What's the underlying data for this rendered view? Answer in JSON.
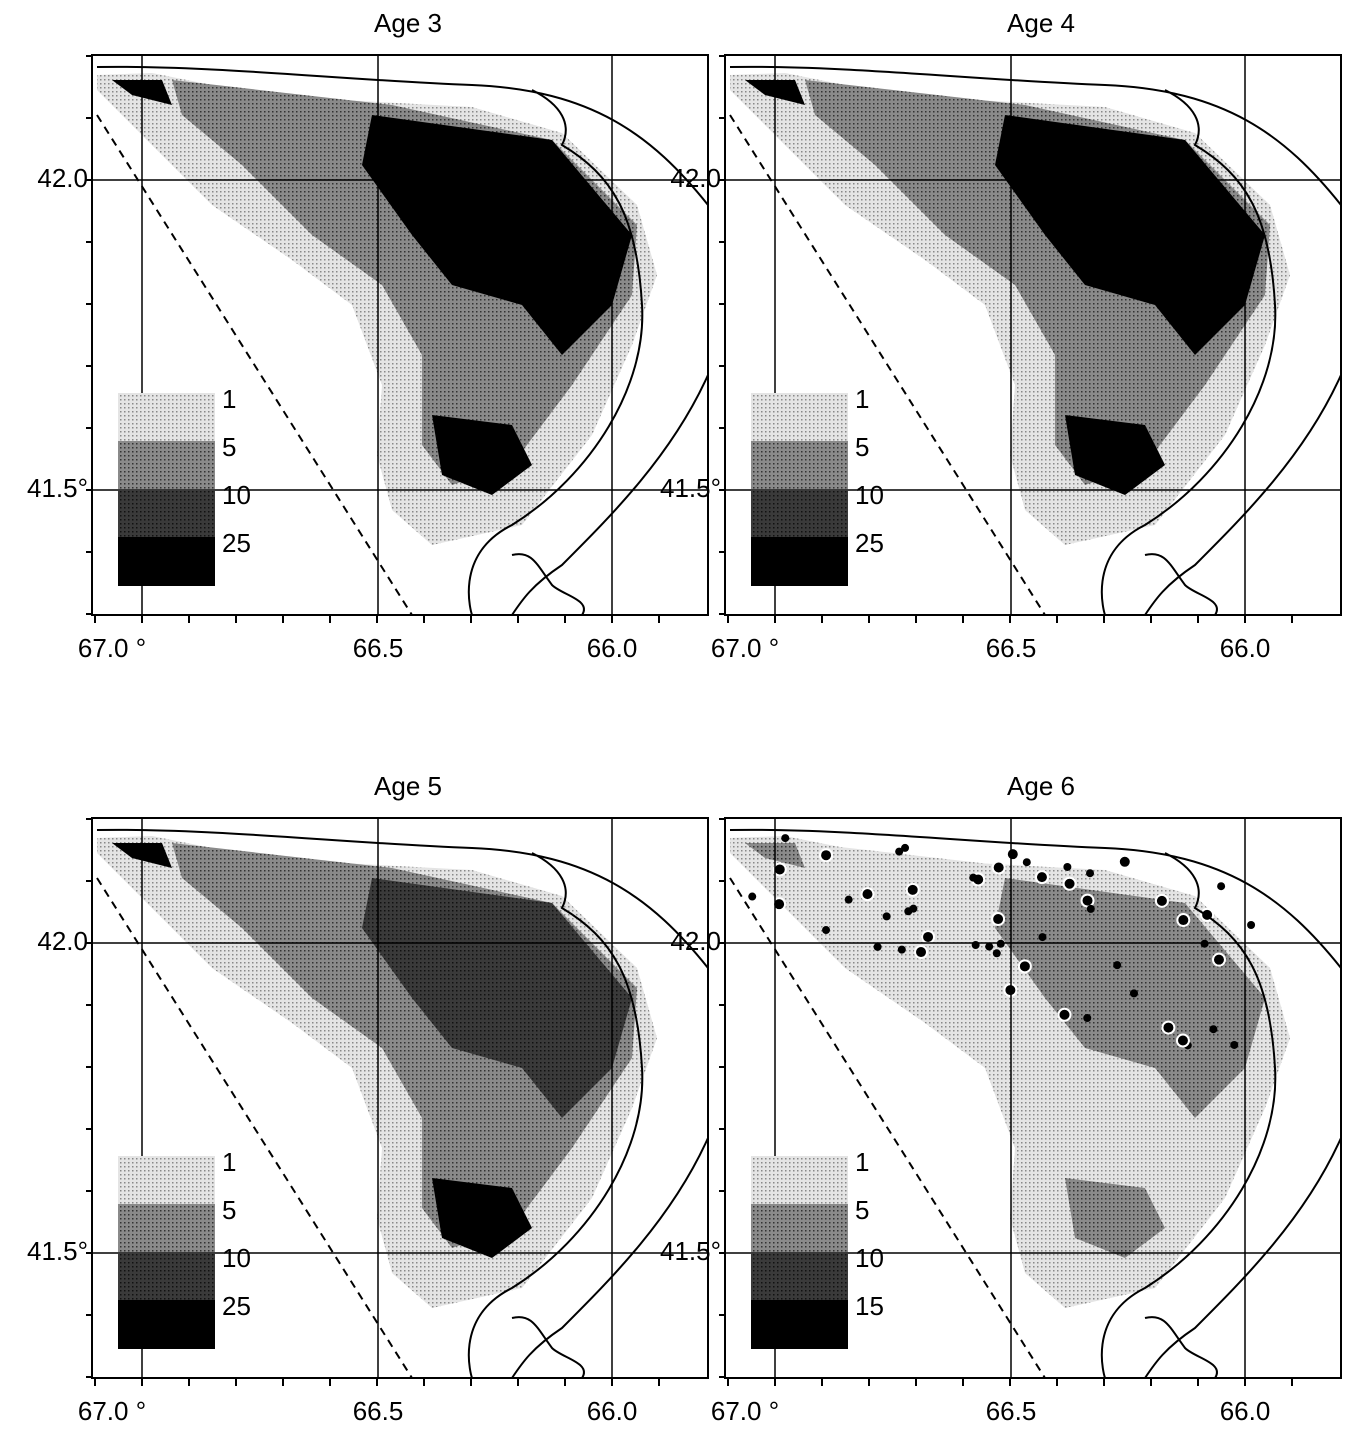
{
  "panels": [
    {
      "title": "Age 3",
      "legend": [
        "1",
        "5",
        "10",
        "25"
      ]
    },
    {
      "title": "Age 4",
      "legend": [
        "1",
        "5",
        "10",
        "25"
      ]
    },
    {
      "title": "Age 5",
      "legend": [
        "1",
        "5",
        "10",
        "25"
      ]
    },
    {
      "title": "Age 6",
      "legend": [
        "1",
        "5",
        "10",
        "15"
      ]
    }
  ],
  "x_labels": [
    "67.0 °",
    "66.5",
    "66.0"
  ],
  "y_labels": [
    "42.0",
    "41.5°"
  ]
}
